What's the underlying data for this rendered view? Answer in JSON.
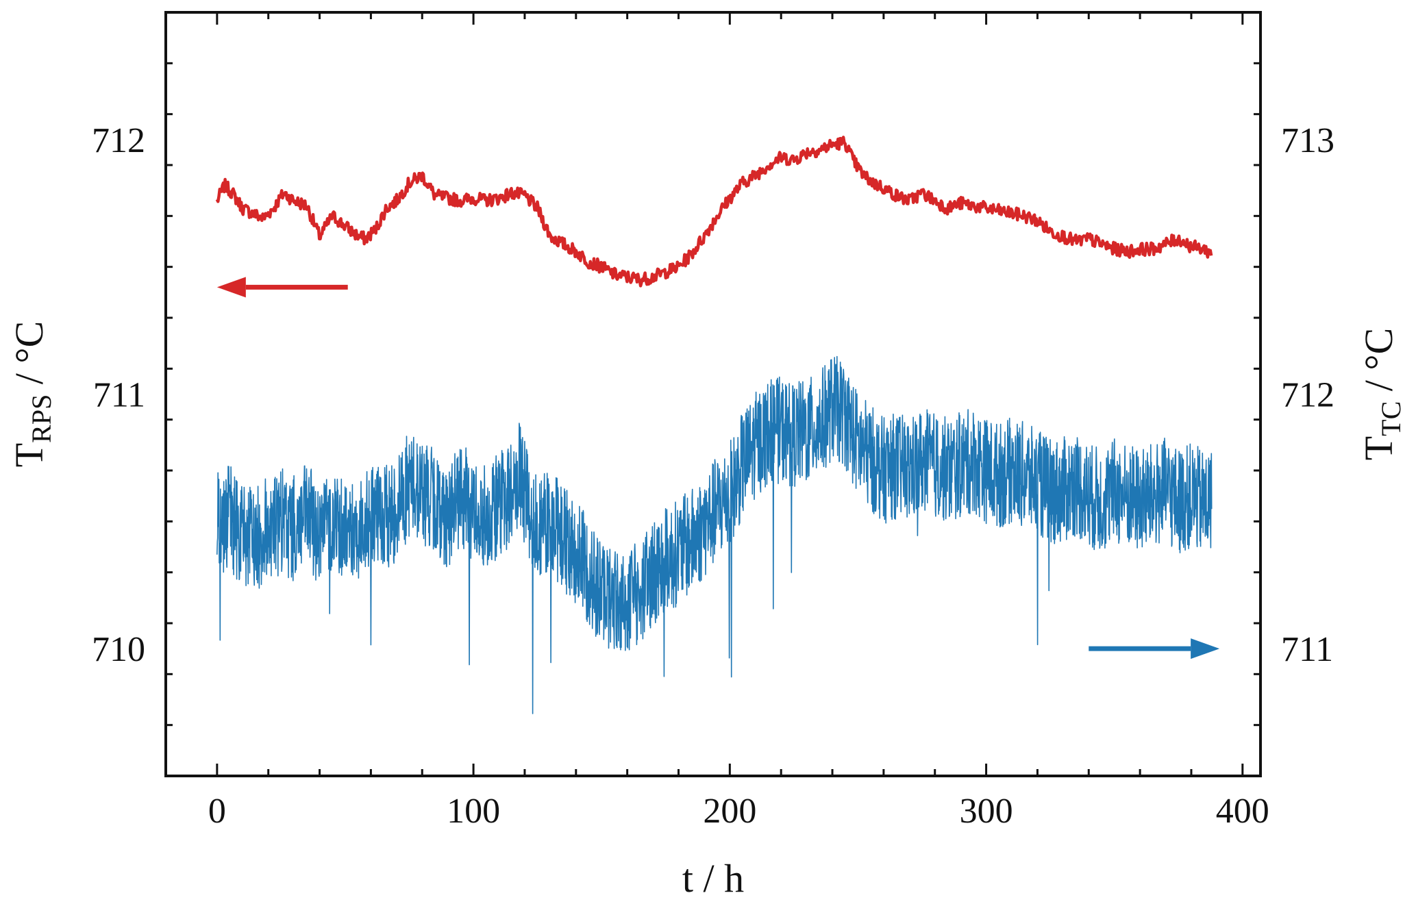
{
  "chart_data": {
    "type": "line",
    "xlabel": "t / h",
    "ylabel_left": {
      "main": "T",
      "sub": "RPS",
      "suffix": " / °C"
    },
    "ylabel_right": {
      "main": "T",
      "sub": "TC",
      "suffix": " / °C"
    },
    "xlim": [
      -20,
      407
    ],
    "ylim_left": [
      709.5,
      712.5
    ],
    "ylim_right": [
      710.5,
      713.5
    ],
    "x_ticks": [
      0,
      100,
      200,
      300,
      400
    ],
    "y_ticks_left": [
      710,
      711,
      712
    ],
    "y_ticks_right": [
      711,
      712,
      713
    ],
    "grid": false,
    "series": [
      {
        "axis": "left",
        "color": "#d62728",
        "x": [
          0,
          3,
          6,
          10,
          14,
          18,
          22,
          26,
          30,
          35,
          40,
          45,
          50,
          55,
          58,
          62,
          66,
          70,
          75,
          80,
          85,
          90,
          95,
          100,
          105,
          110,
          115,
          120,
          125,
          130,
          135,
          140,
          145,
          150,
          155,
          160,
          165,
          170,
          175,
          180,
          185,
          190,
          195,
          200,
          205,
          210,
          215,
          220,
          225,
          230,
          235,
          240,
          245,
          248,
          252,
          256,
          260,
          265,
          270,
          275,
          280,
          285,
          290,
          295,
          300,
          305,
          310,
          315,
          320,
          325,
          330,
          335,
          340,
          345,
          350,
          355,
          360,
          365,
          370,
          375,
          380,
          385,
          388
        ],
        "y": [
          711.76,
          711.82,
          711.79,
          711.73,
          711.71,
          711.69,
          711.73,
          711.79,
          711.76,
          711.74,
          711.62,
          711.7,
          711.66,
          711.62,
          711.61,
          711.65,
          711.73,
          711.76,
          711.83,
          711.86,
          711.78,
          711.77,
          711.76,
          711.77,
          711.76,
          711.77,
          711.79,
          711.78,
          711.73,
          711.62,
          711.59,
          711.56,
          711.52,
          711.5,
          711.47,
          711.46,
          711.45,
          711.46,
          711.48,
          711.5,
          711.55,
          711.62,
          711.7,
          711.77,
          711.83,
          711.86,
          711.9,
          711.93,
          711.92,
          711.95,
          711.96,
          711.98,
          711.99,
          711.92,
          711.86,
          711.83,
          711.81,
          711.78,
          711.76,
          711.79,
          711.76,
          711.73,
          711.75,
          711.74,
          711.73,
          711.72,
          711.71,
          711.7,
          711.68,
          711.64,
          711.62,
          711.6,
          711.61,
          711.59,
          711.57,
          711.56,
          711.57,
          711.57,
          711.59,
          711.61,
          711.58,
          711.57,
          711.55
        ]
      },
      {
        "axis": "right",
        "color": "#1f77b4",
        "x": [
          0,
          5,
          10,
          15,
          20,
          25,
          30,
          35,
          40,
          45,
          50,
          55,
          60,
          65,
          70,
          75,
          80,
          85,
          90,
          95,
          100,
          105,
          110,
          115,
          118,
          122,
          126,
          130,
          135,
          140,
          145,
          150,
          155,
          160,
          165,
          170,
          175,
          180,
          185,
          190,
          195,
          200,
          205,
          210,
          215,
          220,
          225,
          230,
          235,
          240,
          245,
          250,
          255,
          260,
          265,
          270,
          275,
          280,
          285,
          290,
          295,
          300,
          305,
          310,
          315,
          320,
          325,
          330,
          335,
          340,
          345,
          350,
          355,
          360,
          365,
          370,
          375,
          380,
          385,
          388
        ],
        "y": [
          711.5,
          711.52,
          711.45,
          711.42,
          711.48,
          711.5,
          711.47,
          711.52,
          711.45,
          711.5,
          711.48,
          711.47,
          711.52,
          711.5,
          711.55,
          711.65,
          711.62,
          711.57,
          711.52,
          711.6,
          711.55,
          711.52,
          711.57,
          711.62,
          711.68,
          711.55,
          711.48,
          711.5,
          711.44,
          711.38,
          711.3,
          711.22,
          711.2,
          711.18,
          711.22,
          711.3,
          711.35,
          711.38,
          711.42,
          711.48,
          711.55,
          711.6,
          711.72,
          711.8,
          711.85,
          711.86,
          711.84,
          711.85,
          711.88,
          711.95,
          711.92,
          711.8,
          711.75,
          711.7,
          711.72,
          711.7,
          711.74,
          711.72,
          711.7,
          711.72,
          711.74,
          711.7,
          711.68,
          711.7,
          711.68,
          711.65,
          711.62,
          711.62,
          711.65,
          711.6,
          711.58,
          711.62,
          711.6,
          711.58,
          711.6,
          711.62,
          711.58,
          711.6,
          711.57,
          711.58
        ]
      }
    ],
    "annotations": [
      {
        "type": "arrow",
        "direction": "left",
        "color": "#d62728",
        "x_from": 51,
        "x_to": 0,
        "y": 711.42,
        "axis": "left"
      },
      {
        "type": "arrow",
        "direction": "right",
        "color": "#1f77b4",
        "x_from": 340,
        "x_to": 391,
        "y": 711.0,
        "axis": "right"
      }
    ]
  }
}
